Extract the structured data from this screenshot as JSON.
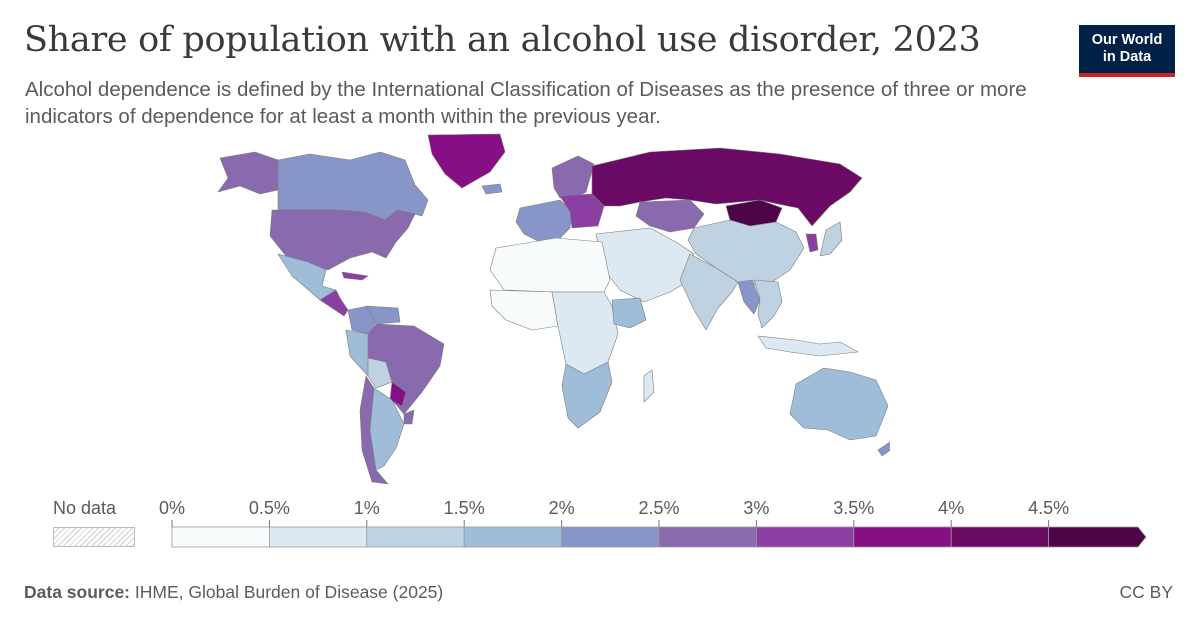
{
  "header": {
    "title": "Share of population with an alcohol use disorder, 2023",
    "subtitle": "Alcohol dependence is defined by the International Classification of Diseases as the presence of three or more indicators of dependence for at least a month within the previous year."
  },
  "logo": {
    "line1": "Our World",
    "line2": "in Data",
    "bg_color": "#002147",
    "accent_color": "#ce261e"
  },
  "legend": {
    "no_data_label": "No data",
    "tick_labels": [
      "0%",
      "0.5%",
      "1%",
      "1.5%",
      "2%",
      "2.5%",
      "3%",
      "3.5%",
      "4%",
      "4.5%"
    ],
    "bin_colors": [
      "#f7fbfc",
      "#dce9f2",
      "#bfd2e2",
      "#9fbcd9",
      "#8895c8",
      "#8a6aaf",
      "#8c3fa3",
      "#870f86",
      "#6b0a64",
      "#4d0448"
    ]
  },
  "footer": {
    "source_label": "Data source:",
    "source_text": "IHME, Global Burden of Disease (2025)",
    "license": "CC BY"
  },
  "map_regions": [
    {
      "name": "Greenland",
      "color": "#870f86"
    },
    {
      "name": "Alaska",
      "color": "#8a6aaf"
    },
    {
      "name": "Canada",
      "color": "#8895c8"
    },
    {
      "name": "United States",
      "color": "#8a6aaf"
    },
    {
      "name": "Mexico",
      "color": "#9fbcd9"
    },
    {
      "name": "Central America",
      "color": "#8c3fa3"
    },
    {
      "name": "Cuba",
      "color": "#8c3fa3"
    },
    {
      "name": "Colombia",
      "color": "#8895c8"
    },
    {
      "name": "Venezuela",
      "color": "#8895c8"
    },
    {
      "name": "Peru",
      "color": "#9fbcd9"
    },
    {
      "name": "Bolivia",
      "color": "#bfd2e2"
    },
    {
      "name": "Brazil",
      "color": "#8a6aaf"
    },
    {
      "name": "Paraguay",
      "color": "#870f86"
    },
    {
      "name": "Uruguay",
      "color": "#8a6aaf"
    },
    {
      "name": "Chile",
      "color": "#8a6aaf"
    },
    {
      "name": "Argentina",
      "color": "#9fbcd9"
    },
    {
      "name": "Iceland",
      "color": "#8895c8"
    },
    {
      "name": "Scandinavia",
      "color": "#8a6aaf"
    },
    {
      "name": "Western Europe",
      "color": "#8895c8"
    },
    {
      "name": "Eastern Europe",
      "color": "#8c3fa3"
    },
    {
      "name": "Russia",
      "color": "#6b0a64"
    },
    {
      "name": "Kazakhstan",
      "color": "#8a6aaf"
    },
    {
      "name": "Mongolia",
      "color": "#4d0448"
    },
    {
      "name": "China",
      "color": "#bfd2e2"
    },
    {
      "name": "Korea",
      "color": "#8c3fa3"
    },
    {
      "name": "Japan",
      "color": "#bfd2e2"
    },
    {
      "name": "Middle East",
      "color": "#dce9f2"
    },
    {
      "name": "North Africa",
      "color": "#f7fbfc"
    },
    {
      "name": "West Africa",
      "color": "#f7fbfc"
    },
    {
      "name": "Central Africa",
      "color": "#dce9f2"
    },
    {
      "name": "Ethiopia",
      "color": "#9fbcd9"
    },
    {
      "name": "Southern Africa",
      "color": "#9fbcd9"
    },
    {
      "name": "Madagascar",
      "color": "#dce9f2"
    },
    {
      "name": "India",
      "color": "#bfd2e2"
    },
    {
      "name": "Myanmar",
      "color": "#8895c8"
    },
    {
      "name": "Southeast Asia",
      "color": "#bfd2e2"
    },
    {
      "name": "Indonesia",
      "color": "#dce9f2"
    },
    {
      "name": "Australia",
      "color": "#9fbcd9"
    },
    {
      "name": "New Zealand",
      "color": "#8895c8"
    }
  ]
}
